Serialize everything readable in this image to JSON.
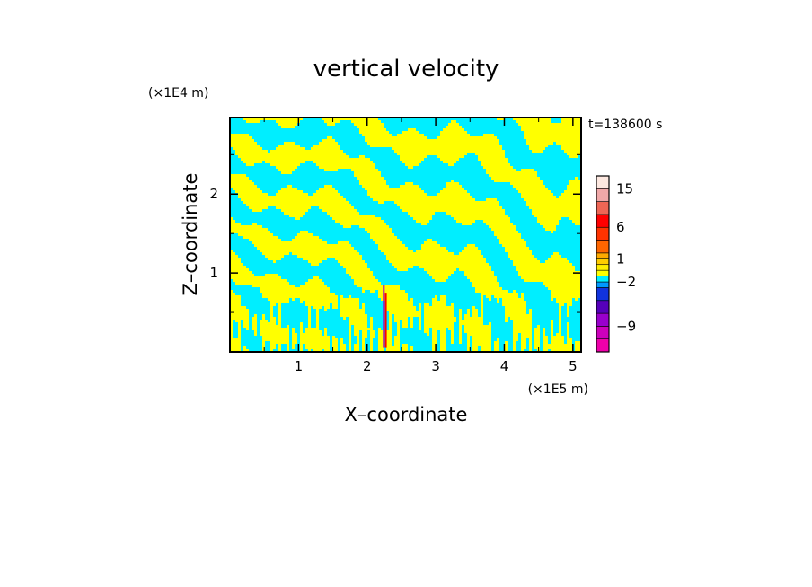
{
  "chart_data": {
    "type": "heatmap",
    "title": "vertical velocity",
    "xlabel": "X–coordinate",
    "ylabel": "Z–coordinate",
    "x_unit": "(×1E5 m)",
    "y_unit": "(×1E4 m)",
    "xlim": [
      0,
      5.12
    ],
    "ylim": [
      0,
      2.97
    ],
    "x_ticks": [
      {
        "value": 1,
        "label": "1"
      },
      {
        "value": 2,
        "label": "2"
      },
      {
        "value": 3,
        "label": "3"
      },
      {
        "value": 4,
        "label": "4"
      },
      {
        "value": 5,
        "label": "5"
      }
    ],
    "y_ticks": [
      {
        "value": 1,
        "label": "1"
      },
      {
        "value": 2,
        "label": "2"
      }
    ],
    "time_label": "t=138600 s",
    "field_colors": {
      "positive": "#ffff00",
      "negative": "#00eeff",
      "strong_positive": "#ff0000",
      "strong_negative": "#9900cc"
    },
    "colorbar": {
      "levels": [
        {
          "value": -12,
          "color": "#ee00aa"
        },
        {
          "value": -9,
          "color": "#cc00bb"
        },
        {
          "value": -6,
          "color": "#9900cc"
        },
        {
          "value": -4,
          "color": "#5500bb"
        },
        {
          "value": -3,
          "color": "#1133dd"
        },
        {
          "value": -2,
          "color": "#0099ff"
        },
        {
          "value": -1,
          "color": "#00eeff"
        },
        {
          "value": 0,
          "color": "#ffff00"
        },
        {
          "value": 0.5,
          "color": "#ffee00"
        },
        {
          "value": 1,
          "color": "#ffcc00"
        },
        {
          "value": 2,
          "color": "#ffaa00"
        },
        {
          "value": 4,
          "color": "#ff6600"
        },
        {
          "value": 6,
          "color": "#ff3300"
        },
        {
          "value": 10,
          "color": "#ff0000"
        },
        {
          "value": 12,
          "color": "#ee6655"
        },
        {
          "value": 15,
          "color": "#f0a8a8"
        },
        {
          "value": 20,
          "color": "#fde8e0"
        }
      ],
      "labels": [
        {
          "value": -9,
          "label": "−9"
        },
        {
          "value": -2,
          "label": "−2"
        },
        {
          "value": 1,
          "label": "1"
        },
        {
          "value": 6,
          "label": "6"
        },
        {
          "value": 15,
          "label": "15"
        }
      ]
    }
  }
}
